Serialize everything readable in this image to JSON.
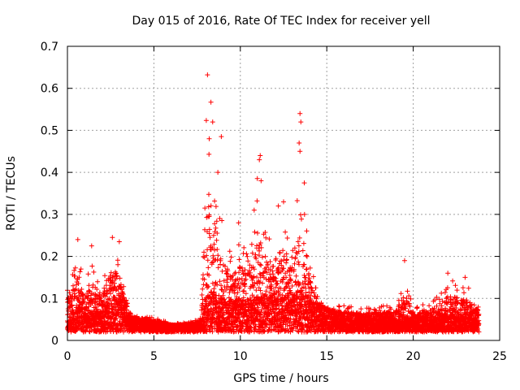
{
  "chart_data": {
    "type": "scatter",
    "title": "Day 015 of 2016, Rate Of TEC Index for receiver yell",
    "xlabel": "GPS time / hours",
    "ylabel": "ROTI / TECUs",
    "xlim": [
      0,
      25
    ],
    "ylim": [
      0,
      0.7
    ],
    "xticks": [
      "0",
      "5",
      "10",
      "15",
      "20",
      "25"
    ],
    "yticks": [
      "0",
      "0.1",
      "0.2",
      "0.3",
      "0.4",
      "0.5",
      "0.6",
      "0.7"
    ],
    "grid": true,
    "marker": "+",
    "series": [
      {
        "name": "ROTI",
        "color": "#ff0000",
        "envelope": {
          "hours": [
            0.0,
            0.3,
            0.6,
            1.0,
            1.5,
            2.0,
            2.5,
            2.8,
            3.2,
            3.6,
            4.0,
            5.0,
            6.0,
            7.0,
            7.7,
            8.0,
            8.3,
            8.7,
            9.0,
            9.5,
            10.0,
            10.5,
            11.0,
            11.5,
            12.0,
            12.5,
            13.0,
            13.5,
            14.0,
            14.5,
            15.0,
            16.0,
            17.0,
            18.0,
            19.0,
            19.5,
            20.0,
            21.0,
            22.0,
            23.0,
            23.8
          ],
          "typical": [
            0.05,
            0.07,
            0.08,
            0.07,
            0.07,
            0.07,
            0.09,
            0.1,
            0.08,
            0.05,
            0.05,
            0.04,
            0.035,
            0.035,
            0.04,
            0.09,
            0.12,
            0.12,
            0.1,
            0.1,
            0.1,
            0.09,
            0.1,
            0.11,
            0.11,
            0.11,
            0.11,
            0.12,
            0.1,
            0.08,
            0.07,
            0.05,
            0.045,
            0.05,
            0.05,
            0.06,
            0.05,
            0.05,
            0.06,
            0.06,
            0.05
          ],
          "peak": [
            0.17,
            0.2,
            0.24,
            0.15,
            0.22,
            0.14,
            0.25,
            0.24,
            0.16,
            0.07,
            0.06,
            0.06,
            0.04,
            0.045,
            0.06,
            0.63,
            0.57,
            0.4,
            0.3,
            0.22,
            0.27,
            0.25,
            0.45,
            0.3,
            0.25,
            0.32,
            0.26,
            0.54,
            0.22,
            0.1,
            0.08,
            0.09,
            0.09,
            0.09,
            0.09,
            0.19,
            0.08,
            0.1,
            0.16,
            0.15,
            0.1
          ]
        },
        "notable_points": [
          {
            "x": 8.1,
            "y": 0.632
          },
          {
            "x": 8.3,
            "y": 0.567
          },
          {
            "x": 8.4,
            "y": 0.52
          },
          {
            "x": 8.2,
            "y": 0.48
          },
          {
            "x": 8.9,
            "y": 0.485
          },
          {
            "x": 8.7,
            "y": 0.4
          },
          {
            "x": 11.15,
            "y": 0.44
          },
          {
            "x": 11.1,
            "y": 0.43
          },
          {
            "x": 11.2,
            "y": 0.38
          },
          {
            "x": 13.45,
            "y": 0.54
          },
          {
            "x": 13.5,
            "y": 0.52
          },
          {
            "x": 13.4,
            "y": 0.47
          },
          {
            "x": 13.45,
            "y": 0.45
          },
          {
            "x": 13.7,
            "y": 0.375
          },
          {
            "x": 12.5,
            "y": 0.33
          },
          {
            "x": 12.2,
            "y": 0.32
          },
          {
            "x": 10.8,
            "y": 0.31
          },
          {
            "x": 9.9,
            "y": 0.28
          },
          {
            "x": 0.6,
            "y": 0.24
          },
          {
            "x": 2.6,
            "y": 0.245
          },
          {
            "x": 3.0,
            "y": 0.235
          },
          {
            "x": 1.4,
            "y": 0.225
          },
          {
            "x": 19.5,
            "y": 0.19
          },
          {
            "x": 22.0,
            "y": 0.16
          },
          {
            "x": 23.0,
            "y": 0.15
          }
        ]
      }
    ]
  }
}
